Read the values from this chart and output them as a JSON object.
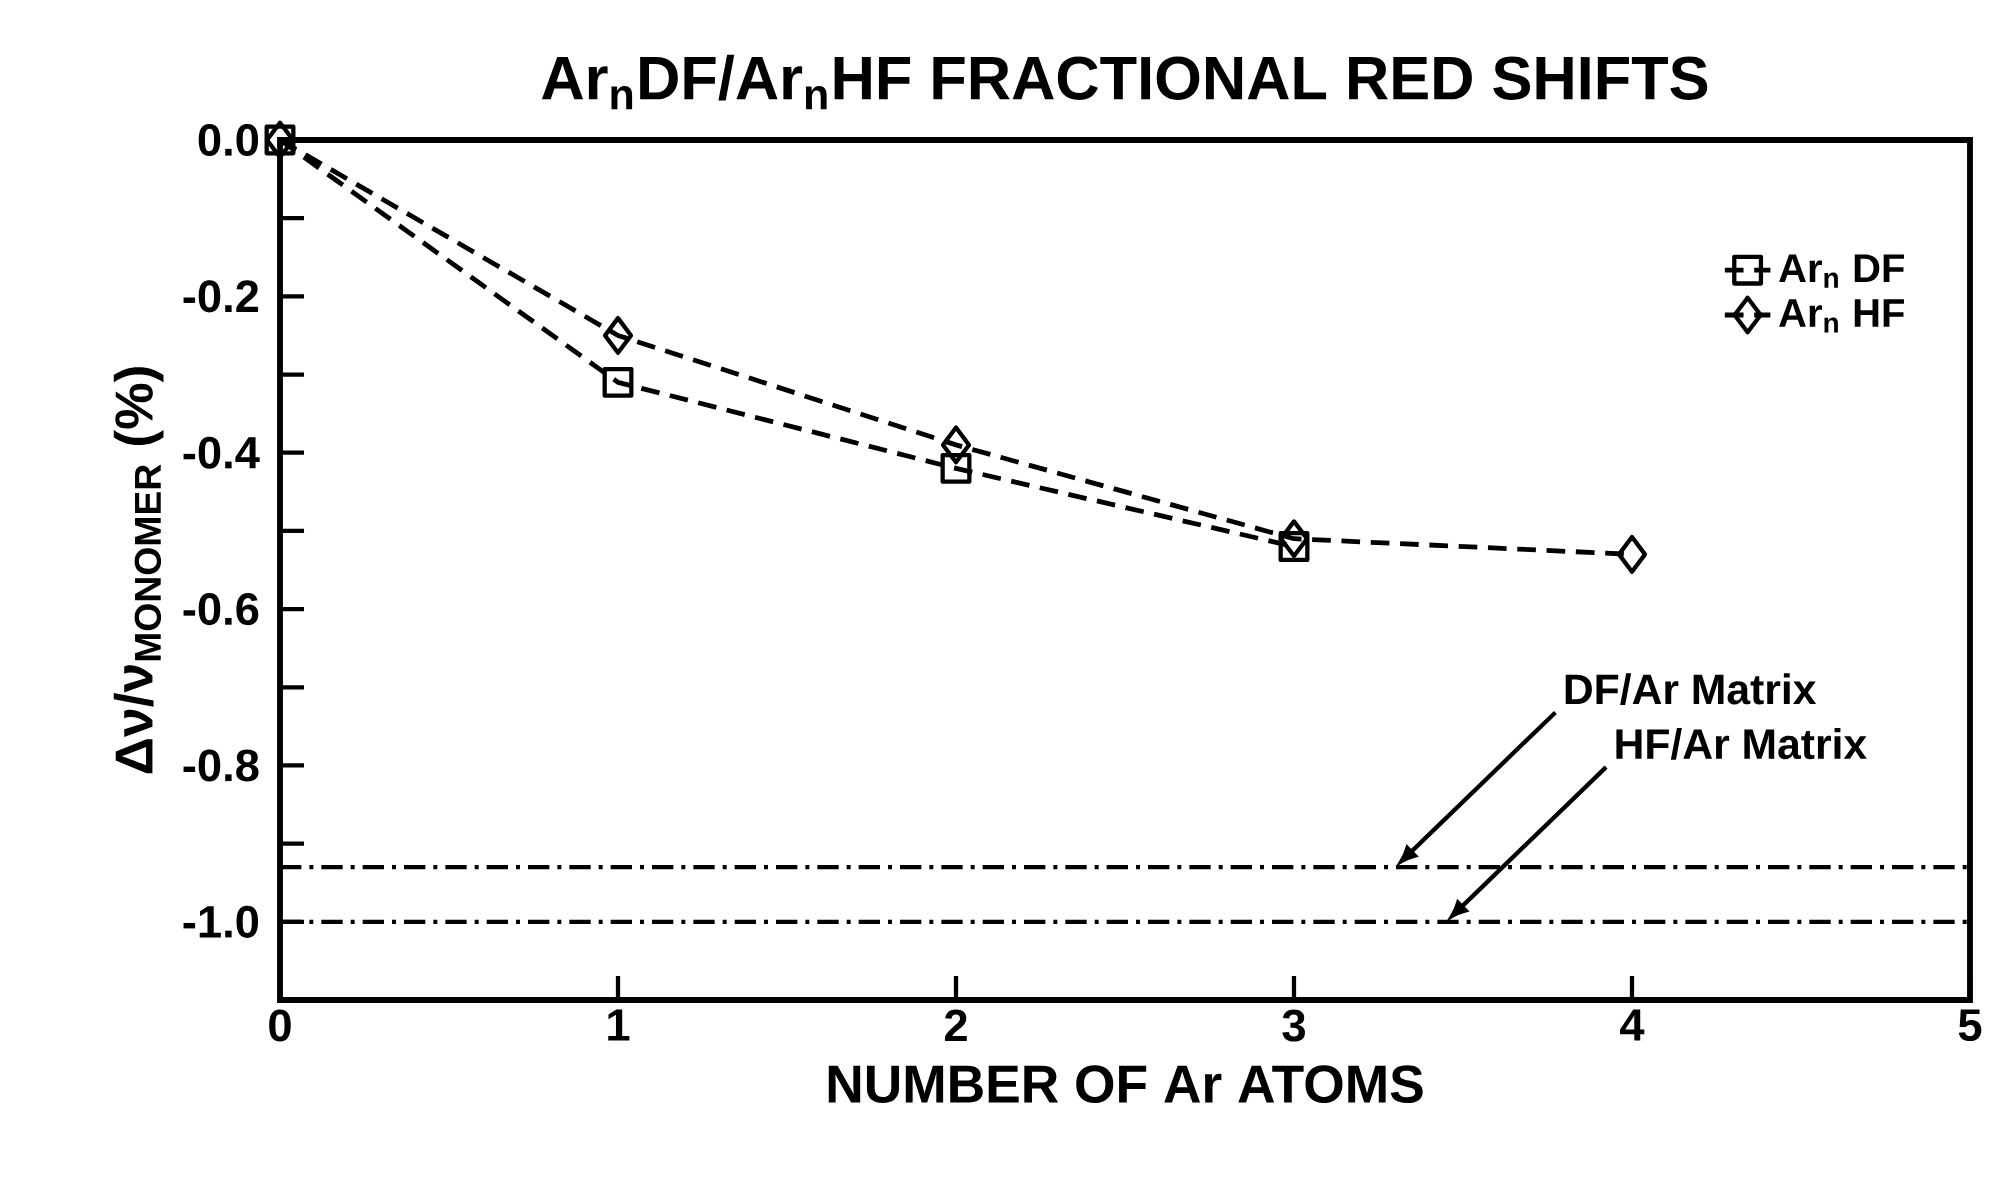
{
  "chart_data": {
    "type": "line",
    "title": "Ar$_{n}$DF/Ar$_{n}$HF FRACTIONAL RED SHIFTS",
    "xlabel": "NUMBER OF Ar ATOMS",
    "ylabel": "Δν/ν$_{MONOMER}$ (%)",
    "series": [
      {
        "name": "Ar$_{n}$ DF",
        "color": "#000000",
        "marker": "square",
        "x": [
          0,
          1,
          2,
          3
        ],
        "values": [
          0,
          -0.31,
          -0.42,
          -0.52
        ]
      },
      {
        "name": "Ar$_{n}$ HF",
        "color": "#000000",
        "marker": "diamond",
        "x": [
          0,
          1,
          2,
          3,
          4
        ],
        "values": [
          0,
          -0.25,
          -0.39,
          -0.51,
          -0.53
        ]
      }
    ],
    "line_style": "dashed",
    "xlim": [
      0,
      5
    ],
    "xticks": [
      0,
      1,
      2,
      3,
      4,
      5
    ],
    "ylim": [
      -1.1,
      0
    ],
    "yticks": [
      {
        "value": 0,
        "label": "0.0"
      },
      {
        "value": -0.1,
        "label": null
      },
      {
        "value": -0.2,
        "label": "-0.2"
      },
      {
        "value": -0.3,
        "label": null
      },
      {
        "value": -0.4,
        "label": "-0.4"
      },
      {
        "value": -0.5,
        "label": null
      },
      {
        "value": -0.6,
        "label": "-0.6"
      },
      {
        "value": -0.7,
        "label": null
      },
      {
        "value": -0.8,
        "label": "-0.8"
      },
      {
        "value": -0.9,
        "label": null
      },
      {
        "value": -1.0,
        "label": "-1.0"
      }
    ],
    "ref_lines": [
      {
        "axis": "y",
        "value": -0.93,
        "label": "DF/Ar Matrix",
        "line_style": "dashdot",
        "color": "#000000"
      },
      {
        "axis": "y",
        "value": -1.0,
        "label": "HF/Ar Matrix",
        "line_style": "dashdot",
        "color": "#000000"
      }
    ],
    "legend": "top right",
    "grid": false
  }
}
